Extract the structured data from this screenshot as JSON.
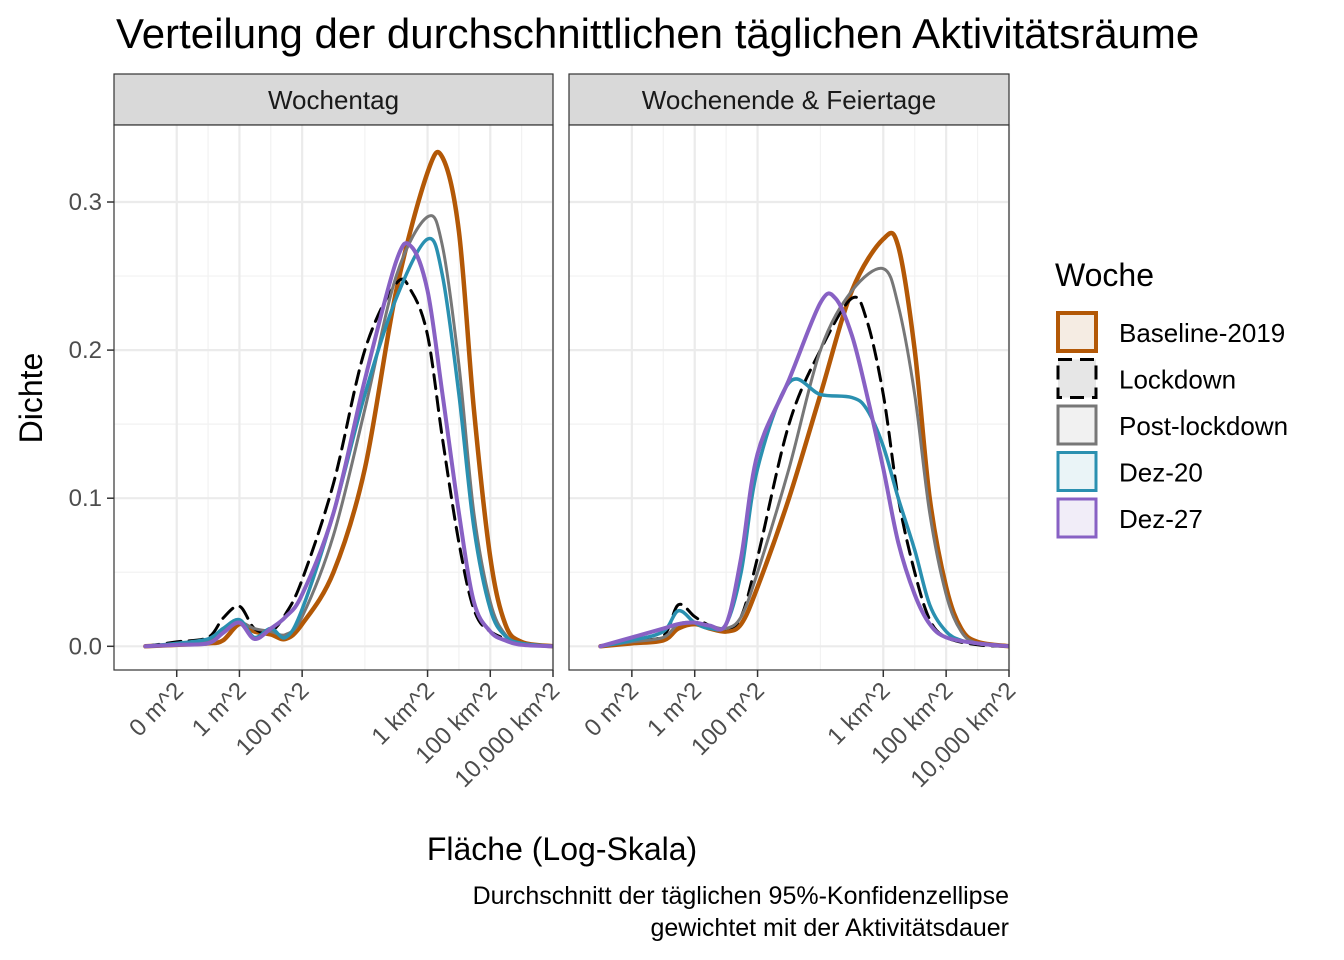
{
  "chart_data": {
    "type": "line",
    "title": "Verteilung der durchschnittlichen täglichen Aktivitätsräume",
    "xlabel": "Fläche (Log-Skala)",
    "ylabel": "Dichte",
    "caption": [
      "Durchschnitt der täglichen 95%-Konfidenzellipse",
      "gewichtet mit der Aktivitätsdauer"
    ],
    "x_scale": "log10",
    "x_unit": "m^2",
    "xlim": [
      0.0001,
      10000000000.0
    ],
    "ylim": [
      -0.016,
      0.352
    ],
    "x_ticks": [
      {
        "value": 0.01,
        "label": "0 m^2"
      },
      {
        "value": 1,
        "label": "1 m^2"
      },
      {
        "value": 100,
        "label": "100 m^2"
      },
      {
        "value": 1000000,
        "label": "1 km^2"
      },
      {
        "value": 100000000,
        "label": "100 km^2"
      },
      {
        "value": 10000000000,
        "label": "10,000 km^2"
      }
    ],
    "y_ticks": [
      {
        "value": 0.0,
        "label": "0.0"
      },
      {
        "value": 0.1,
        "label": "0.1"
      },
      {
        "value": 0.2,
        "label": "0.2"
      },
      {
        "value": 0.3,
        "label": "0.3"
      }
    ],
    "grid": true,
    "legend": {
      "title": "Woche",
      "position": "right",
      "entries": [
        "Baseline-2019",
        "Lockdown",
        "Post-lockdown",
        "Dez-20",
        "Dez-27"
      ]
    },
    "styles": {
      "Baseline-2019": {
        "color": "#b35806",
        "fill": "#f5ece3",
        "dash": "solid",
        "width": 4.5
      },
      "Lockdown": {
        "color": "#000000",
        "fill": "#e6e6e6",
        "dash": "dashed",
        "width": 3
      },
      "Post-lockdown": {
        "color": "#777777",
        "fill": "#f1f1f1",
        "dash": "solid",
        "width": 3
      },
      "Dez-20": {
        "color": "#2a90b0",
        "fill": "#eaf4f7",
        "dash": "solid",
        "width": 3.5
      },
      "Dez-27": {
        "color": "#8861c4",
        "fill": "#f1edf8",
        "dash": "solid",
        "width": 4
      }
    },
    "panels": [
      {
        "title": "Wochentag",
        "series": [
          {
            "name": "Baseline-2019",
            "points": [
              [
                0.001,
                0
              ],
              [
                0.01,
                0.001
              ],
              [
                0.1,
                0.002
              ],
              [
                0.3,
                0.004
              ],
              [
                1,
                0.015
              ],
              [
                3,
                0.01
              ],
              [
                10,
                0.008
              ],
              [
                30,
                0.005
              ],
              [
                100,
                0.015
              ],
              [
                1000,
                0.05
              ],
              [
                10000.0,
                0.12
              ],
              [
                100000.0,
                0.24
              ],
              [
                1000000.0,
                0.32
              ],
              [
                3000000.0,
                0.33
              ],
              [
                10000000.0,
                0.28
              ],
              [
                30000000.0,
                0.16
              ],
              [
                100000000.0,
                0.06
              ],
              [
                300000000.0,
                0.015
              ],
              [
                1000000000.0,
                0.003
              ],
              [
                10000000000.0,
                0
              ]
            ]
          },
          {
            "name": "Lockdown",
            "points": [
              [
                0.001,
                0
              ],
              [
                0.01,
                0.003
              ],
              [
                0.1,
                0.006
              ],
              [
                0.3,
                0.019
              ],
              [
                1,
                0.027
              ],
              [
                3,
                0.012
              ],
              [
                10,
                0.01
              ],
              [
                30,
                0.022
              ],
              [
                100,
                0.045
              ],
              [
                1000,
                0.11
              ],
              [
                10000.0,
                0.2
              ],
              [
                100000.0,
                0.245
              ],
              [
                300000.0,
                0.24
              ],
              [
                1000000.0,
                0.21
              ],
              [
                3000000.0,
                0.14
              ],
              [
                10000000.0,
                0.07
              ],
              [
                30000000.0,
                0.025
              ],
              [
                100000000.0,
                0.01
              ],
              [
                1000000000.0,
                0.002
              ],
              [
                10000000000.0,
                0
              ]
            ]
          },
          {
            "name": "Post-lockdown",
            "points": [
              [
                0.001,
                0
              ],
              [
                0.01,
                0.001
              ],
              [
                0.1,
                0.003
              ],
              [
                0.3,
                0.01
              ],
              [
                1,
                0.016
              ],
              [
                3,
                0.012
              ],
              [
                10,
                0.01
              ],
              [
                30,
                0.008
              ],
              [
                100,
                0.02
              ],
              [
                1000,
                0.075
              ],
              [
                10000.0,
                0.16
              ],
              [
                100000.0,
                0.25
              ],
              [
                1000000.0,
                0.29
              ],
              [
                3000000.0,
                0.27
              ],
              [
                10000000.0,
                0.19
              ],
              [
                30000000.0,
                0.09
              ],
              [
                100000000.0,
                0.03
              ],
              [
                300000000.0,
                0.008
              ],
              [
                1000000000.0,
                0.002
              ],
              [
                10000000000.0,
                0
              ]
            ]
          },
          {
            "name": "Dez-20",
            "points": [
              [
                0.001,
                0
              ],
              [
                0.01,
                0.002
              ],
              [
                0.1,
                0.005
              ],
              [
                0.3,
                0.012
              ],
              [
                1,
                0.018
              ],
              [
                3,
                0.006
              ],
              [
                10,
                0.012
              ],
              [
                30,
                0.006
              ],
              [
                100,
                0.025
              ],
              [
                1000,
                0.09
              ],
              [
                10000.0,
                0.17
              ],
              [
                100000.0,
                0.235
              ],
              [
                1000000.0,
                0.275
              ],
              [
                3000000.0,
                0.25
              ],
              [
                10000000.0,
                0.17
              ],
              [
                30000000.0,
                0.08
              ],
              [
                100000000.0,
                0.025
              ],
              [
                300000000.0,
                0.007
              ],
              [
                1000000000.0,
                0.002
              ],
              [
                10000000000.0,
                0
              ]
            ]
          },
          {
            "name": "Dez-27",
            "points": [
              [
                0.001,
                0
              ],
              [
                0.01,
                0.001
              ],
              [
                0.1,
                0.002
              ],
              [
                0.3,
                0.009
              ],
              [
                1,
                0.016
              ],
              [
                3,
                0.005
              ],
              [
                10,
                0.012
              ],
              [
                30,
                0.02
              ],
              [
                100,
                0.035
              ],
              [
                1000,
                0.09
              ],
              [
                10000.0,
                0.18
              ],
              [
                100000.0,
                0.26
              ],
              [
                300000.0,
                0.27
              ],
              [
                1000000.0,
                0.24
              ],
              [
                3000000.0,
                0.17
              ],
              [
                10000000.0,
                0.09
              ],
              [
                30000000.0,
                0.03
              ],
              [
                100000000.0,
                0.01
              ],
              [
                300000000.0,
                0.004
              ],
              [
                1000000000.0,
                0.001
              ],
              [
                10000000000.0,
                0
              ]
            ]
          }
        ]
      },
      {
        "title": "Wochenende & Feiertage",
        "series": [
          {
            "name": "Baseline-2019",
            "points": [
              [
                0.001,
                0
              ],
              [
                0.01,
                0.002
              ],
              [
                0.1,
                0.004
              ],
              [
                0.3,
                0.012
              ],
              [
                1,
                0.015
              ],
              [
                3,
                0.012
              ],
              [
                10,
                0.01
              ],
              [
                30,
                0.015
              ],
              [
                100,
                0.04
              ],
              [
                1000,
                0.1
              ],
              [
                10000.0,
                0.17
              ],
              [
                100000.0,
                0.24
              ],
              [
                1000000.0,
                0.275
              ],
              [
                3000000.0,
                0.27
              ],
              [
                10000000.0,
                0.2
              ],
              [
                30000000.0,
                0.1
              ],
              [
                100000000.0,
                0.04
              ],
              [
                300000000.0,
                0.012
              ],
              [
                1000000000.0,
                0.003
              ],
              [
                10000000000.0,
                0
              ]
            ]
          },
          {
            "name": "Lockdown",
            "points": [
              [
                0.001,
                0
              ],
              [
                0.01,
                0.004
              ],
              [
                0.1,
                0.007
              ],
              [
                0.3,
                0.028
              ],
              [
                1,
                0.02
              ],
              [
                3,
                0.014
              ],
              [
                10,
                0.012
              ],
              [
                30,
                0.02
              ],
              [
                100,
                0.06
              ],
              [
                1000,
                0.15
              ],
              [
                10000.0,
                0.2
              ],
              [
                100000.0,
                0.235
              ],
              [
                300000.0,
                0.22
              ],
              [
                1000000.0,
                0.17
              ],
              [
                3000000.0,
                0.1
              ],
              [
                10000000.0,
                0.05
              ],
              [
                30000000.0,
                0.018
              ],
              [
                100000000.0,
                0.006
              ],
              [
                1000000000.0,
                0.001
              ],
              [
                10000000000.0,
                0
              ]
            ]
          },
          {
            "name": "Post-lockdown",
            "points": [
              [
                0.001,
                0
              ],
              [
                0.01,
                0.003
              ],
              [
                0.1,
                0.006
              ],
              [
                0.3,
                0.015
              ],
              [
                1,
                0.016
              ],
              [
                3,
                0.014
              ],
              [
                10,
                0.012
              ],
              [
                30,
                0.02
              ],
              [
                100,
                0.05
              ],
              [
                1000,
                0.12
              ],
              [
                10000.0,
                0.2
              ],
              [
                100000.0,
                0.24
              ],
              [
                1000000.0,
                0.255
              ],
              [
                3000000.0,
                0.23
              ],
              [
                10000000.0,
                0.17
              ],
              [
                30000000.0,
                0.09
              ],
              [
                100000000.0,
                0.035
              ],
              [
                300000000.0,
                0.01
              ],
              [
                1000000000.0,
                0.002
              ],
              [
                10000000000.0,
                0
              ]
            ]
          },
          {
            "name": "Dez-20",
            "points": [
              [
                0.001,
                0
              ],
              [
                0.01,
                0.004
              ],
              [
                0.1,
                0.01
              ],
              [
                0.3,
                0.024
              ],
              [
                1,
                0.016
              ],
              [
                3,
                0.012
              ],
              [
                10,
                0.015
              ],
              [
                30,
                0.05
              ],
              [
                100,
                0.12
              ],
              [
                1000,
                0.178
              ],
              [
                10000.0,
                0.17
              ],
              [
                100000.0,
                0.168
              ],
              [
                300000.0,
                0.16
              ],
              [
                1000000.0,
                0.135
              ],
              [
                3000000.0,
                0.1
              ],
              [
                10000000.0,
                0.065
              ],
              [
                30000000.0,
                0.028
              ],
              [
                100000000.0,
                0.01
              ],
              [
                300000000.0,
                0.004
              ],
              [
                1000000000.0,
                0.002
              ],
              [
                10000000000.0,
                0
              ]
            ]
          },
          {
            "name": "Dez-27",
            "points": [
              [
                0.001,
                0
              ],
              [
                0.01,
                0.006
              ],
              [
                0.1,
                0.012
              ],
              [
                0.3,
                0.015
              ],
              [
                1,
                0.016
              ],
              [
                3,
                0.014
              ],
              [
                10,
                0.015
              ],
              [
                30,
                0.06
              ],
              [
                100,
                0.13
              ],
              [
                1000,
                0.18
              ],
              [
                10000.0,
                0.232
              ],
              [
                30000.0,
                0.235
              ],
              [
                100000.0,
                0.21
              ],
              [
                300000.0,
                0.17
              ],
              [
                1000000.0,
                0.12
              ],
              [
                3000000.0,
                0.07
              ],
              [
                10000000.0,
                0.035
              ],
              [
                30000000.0,
                0.015
              ],
              [
                100000000.0,
                0.006
              ],
              [
                1000000000.0,
                0.002
              ],
              [
                10000000000.0,
                0
              ]
            ]
          }
        ]
      }
    ]
  }
}
